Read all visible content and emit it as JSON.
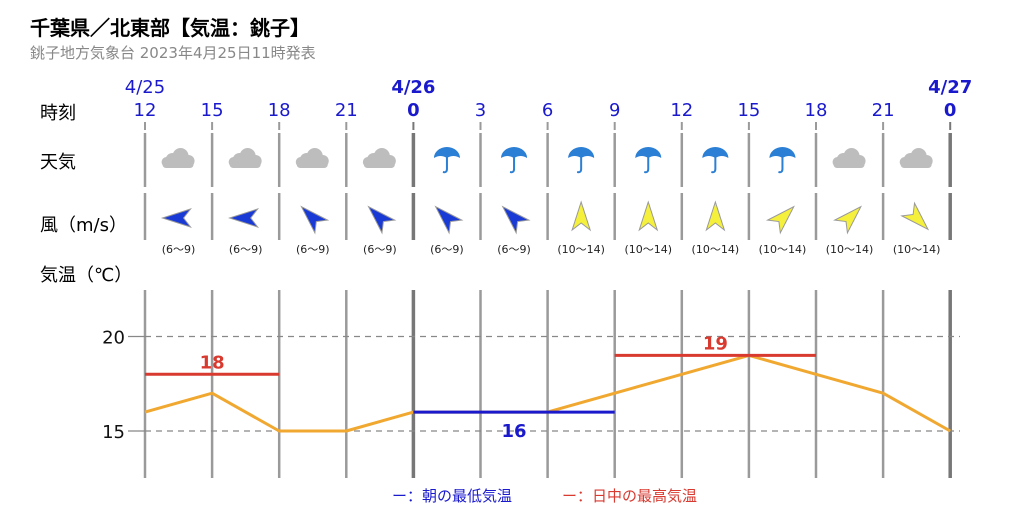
{
  "header": {
    "title": "千葉県／北東部【気温：銚子】",
    "subtitle": "銚子地方気象台 2023年4月25日11時発表"
  },
  "rows": {
    "time": "時刻",
    "weather": "天気",
    "wind": "風（m/s）",
    "temp": "気温（℃）"
  },
  "colors": {
    "hour": "#1a1acc",
    "grid": "#888888",
    "min_line": "#1a1acc",
    "max_line": "#d93a30",
    "temp_line": "#f0a830",
    "wind_yellow": "#f5f03c",
    "wind_blue": "#1a3ad6",
    "umbrella": "#2b7fd4",
    "cloud": "#bdbdbd"
  },
  "columns": [
    {
      "date": "4/25",
      "hour": "12",
      "major": false,
      "weather": "cloud",
      "wind_dir": "E",
      "wind_color": "blue",
      "wind_range": "(6〜9)"
    },
    {
      "date": "",
      "hour": "15",
      "major": false,
      "weather": "cloud",
      "wind_dir": "E",
      "wind_color": "blue",
      "wind_range": "(6〜9)"
    },
    {
      "date": "",
      "hour": "18",
      "major": false,
      "weather": "cloud",
      "wind_dir": "SE",
      "wind_color": "blue",
      "wind_range": "(6〜9)"
    },
    {
      "date": "",
      "hour": "21",
      "major": false,
      "weather": "cloud",
      "wind_dir": "SE",
      "wind_color": "blue",
      "wind_range": "(6〜9)"
    },
    {
      "date": "4/26",
      "hour": "0",
      "major": true,
      "weather": "rain",
      "wind_dir": "SE",
      "wind_color": "blue",
      "wind_range": "(6〜9)"
    },
    {
      "date": "",
      "hour": "3",
      "major": false,
      "weather": "rain",
      "wind_dir": "SE",
      "wind_color": "blue",
      "wind_range": "(6〜9)"
    },
    {
      "date": "",
      "hour": "6",
      "major": false,
      "weather": "rain",
      "wind_dir": "S",
      "wind_color": "yellow",
      "wind_range": "(10〜14)"
    },
    {
      "date": "",
      "hour": "9",
      "major": false,
      "weather": "rain",
      "wind_dir": "S",
      "wind_color": "yellow",
      "wind_range": "(10〜14)"
    },
    {
      "date": "",
      "hour": "12",
      "major": false,
      "weather": "rain",
      "wind_dir": "S",
      "wind_color": "yellow",
      "wind_range": "(10〜14)"
    },
    {
      "date": "",
      "hour": "15",
      "major": false,
      "weather": "rain",
      "wind_dir": "SW",
      "wind_color": "yellow",
      "wind_range": "(10〜14)"
    },
    {
      "date": "",
      "hour": "18",
      "major": false,
      "weather": "cloud",
      "wind_dir": "SW",
      "wind_color": "yellow",
      "wind_range": "(10〜14)"
    },
    {
      "date": "",
      "hour": "21",
      "major": false,
      "weather": "cloud",
      "wind_dir": "NW",
      "wind_color": "yellow",
      "wind_range": "(10〜14)"
    },
    {
      "date": "4/27",
      "hour": "0",
      "major": true
    }
  ],
  "chart_data": {
    "type": "line",
    "x": [
      "4/25 12",
      "15",
      "18",
      "21",
      "4/26 0",
      "3",
      "6",
      "9",
      "12",
      "15",
      "18",
      "21",
      "4/27 0"
    ],
    "series": [
      {
        "values": [
          16,
          17,
          15,
          15,
          16,
          16,
          16,
          17,
          18,
          19,
          18,
          17,
          15
        ]
      }
    ],
    "yticks": [
      15,
      20
    ],
    "ylim": [
      13,
      22.5
    ],
    "ylabel": "気温（℃）",
    "grid_dashed_at": [
      15,
      20
    ],
    "min_temp": {
      "value": 16,
      "label": "16",
      "from": 4,
      "to": 7
    },
    "max_temps": [
      {
        "value": 18,
        "label": "18",
        "from": 0,
        "to": 2
      },
      {
        "value": 19,
        "label": "19",
        "from": 7,
        "to": 10
      }
    ],
    "legend": [
      {
        "symbol": "ー",
        "text": "：朝の最低気温",
        "color": "#1a1acc"
      },
      {
        "symbol": "ー",
        "text": "：日中の最高気温",
        "color": "#d93a30"
      }
    ]
  }
}
